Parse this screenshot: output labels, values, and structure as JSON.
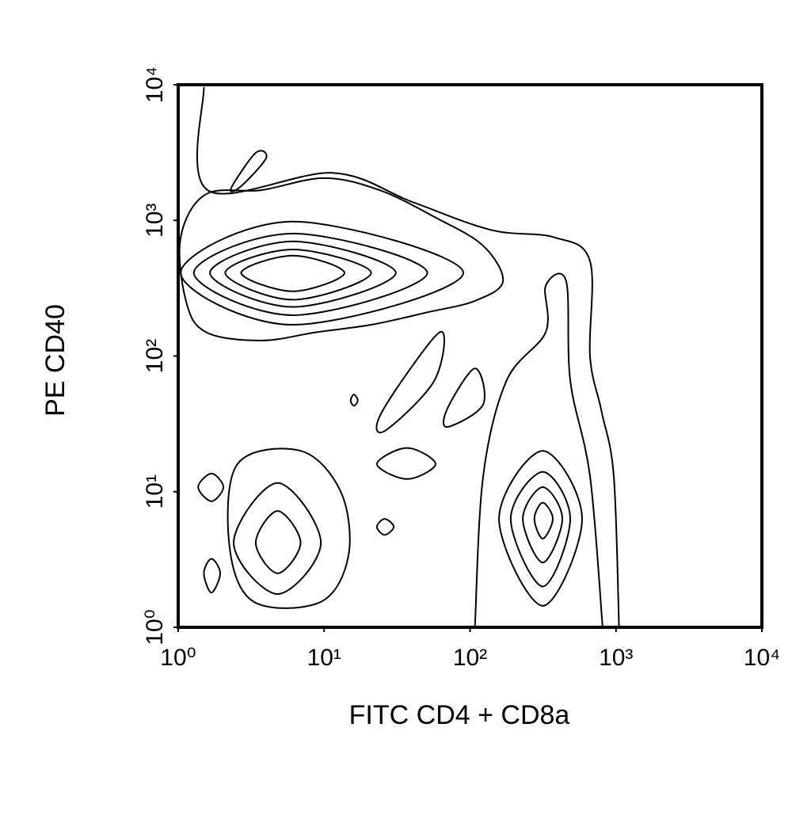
{
  "chart_data": {
    "type": "contour",
    "x_label": "FITC CD4 + CD8a",
    "y_label": "PE CD40",
    "xscale": "log",
    "yscale": "log",
    "xlim": [
      1,
      10000
    ],
    "ylim": [
      1,
      10000
    ],
    "xticks": [
      {
        "value": 1,
        "label": "10⁰"
      },
      {
        "value": 10,
        "label": "10¹"
      },
      {
        "value": 100,
        "label": "10²"
      },
      {
        "value": 1000,
        "label": "10³"
      },
      {
        "value": 10000,
        "label": "10⁴"
      }
    ],
    "yticks": [
      {
        "value": 1,
        "label": "10⁰"
      },
      {
        "value": 10,
        "label": "10¹"
      },
      {
        "value": 100,
        "label": "10²"
      },
      {
        "value": 1000,
        "label": "10³"
      },
      {
        "value": 10000,
        "label": "10⁴"
      }
    ],
    "color": "#000000",
    "contours": [
      {
        "x": [
          2.7,
          6.1,
          13.8,
          6.1
        ],
        "y": [
          410,
          550,
          410,
          300
        ],
        "closed": true
      },
      {
        "x": [
          2.1,
          6.1,
          21,
          6.1
        ],
        "y": [
          410,
          610,
          410,
          260
        ],
        "closed": true
      },
      {
        "x": [
          1.65,
          6.1,
          31,
          6.1
        ],
        "y": [
          410,
          700,
          410,
          230
        ],
        "closed": true
      },
      {
        "x": [
          1.28,
          6.1,
          51,
          6.1
        ],
        "y": [
          410,
          800,
          410,
          200
        ],
        "closed": true
      },
      {
        "x": [
          1.04,
          6.1,
          90,
          6.1
        ],
        "y": [
          410,
          980,
          410,
          170
        ],
        "closed": true
      },
      {
        "x": [
          1.04,
          1.55,
          3.7,
          10,
          24,
          58,
          123,
          168,
          108,
          51,
          21,
          8.9,
          3.7,
          1.55,
          1.13
        ],
        "y": [
          750,
          1560,
          1670,
          2050,
          1670,
          1050,
          650,
          355,
          255,
          210,
          170,
          150,
          130,
          150,
          255
        ],
        "closed": true
      },
      {
        "x": [
          1.5,
          1.59,
          11.4,
          40,
          139,
          378,
          664,
          664,
          797,
          966,
          1050
        ],
        "y": [
          9600,
          1670,
          2240,
          1370,
          850,
          750,
          500,
          99,
          39,
          13,
          1.0
        ],
        "closed": false
      },
      {
        "x": [
          2.3,
          3.4,
          4.0,
          2.7
        ],
        "y": [
          1720,
          3150,
          2870,
          1790
        ],
        "closed": true
      },
      {
        "x": [
          276,
          315,
          369,
          315
        ],
        "y": [
          6.3,
          8.3,
          6.3,
          4.5
        ],
        "closed": true
      },
      {
        "x": [
          230,
          315,
          429,
          315
        ],
        "y": [
          6.3,
          10.8,
          6.3,
          3.0
        ],
        "closed": true
      },
      {
        "x": [
          190,
          315,
          486,
          315
        ],
        "y": [
          6.3,
          14,
          6.3,
          2.0
        ],
        "closed": true
      },
      {
        "x": [
          158,
          315,
          586,
          315
        ],
        "y": [
          6.3,
          20,
          6.3,
          1.44
        ],
        "closed": true
      },
      {
        "x": [
          108,
          123,
          178,
          330,
          330,
          456,
          486,
          664,
          810
        ],
        "y": [
          1.0,
          13,
          66,
          150,
          330,
          355,
          66,
          13,
          1.0
        ],
        "closed": false
      },
      {
        "x": [
          3.4,
          4.8,
          6.9,
          4.8
        ],
        "y": [
          4.2,
          7.2,
          4.2,
          2.5
        ],
        "closed": true
      },
      {
        "x": [
          2.4,
          4.8,
          9.5,
          4.8
        ],
        "y": [
          4.2,
          11.6,
          4.2,
          1.76
        ],
        "closed": true
      },
      {
        "x": [
          2.55,
          6.9,
          13,
          14.7,
          9.5,
          3.3,
          2.25
        ],
        "y": [
          16,
          20,
          10,
          3.4,
          1.54,
          1.54,
          3.9
        ],
        "closed": true
      },
      {
        "x": [
          1.37,
          1.69,
          2.04,
          1.69
        ],
        "y": [
          10.8,
          13.6,
          10.8,
          8.5
        ],
        "closed": true
      },
      {
        "x": [
          1.5,
          1.69,
          1.94,
          1.69
        ],
        "y": [
          2.5,
          3.2,
          2.5,
          1.8
        ],
        "closed": true
      },
      {
        "x": [
          23,
          26,
          30,
          26
        ],
        "y": [
          5.5,
          6.3,
          5.5,
          4.8
        ],
        "closed": true
      },
      {
        "x": [
          15.2,
          16,
          17,
          16
        ],
        "y": [
          47,
          52,
          47,
          43
        ],
        "closed": true
      },
      {
        "x": [
          23,
          37,
          58,
          37
        ],
        "y": [
          16,
          21,
          16,
          12.4
        ],
        "closed": true
      },
      {
        "x": [
          62,
          57,
          26,
          25
        ],
        "y": [
          150,
          66,
          28,
          39
        ],
        "closed": true
      },
      {
        "x": [
          108,
          123,
          70,
          70
        ],
        "y": [
          81,
          44,
          30,
          41
        ],
        "closed": true
      }
    ]
  }
}
